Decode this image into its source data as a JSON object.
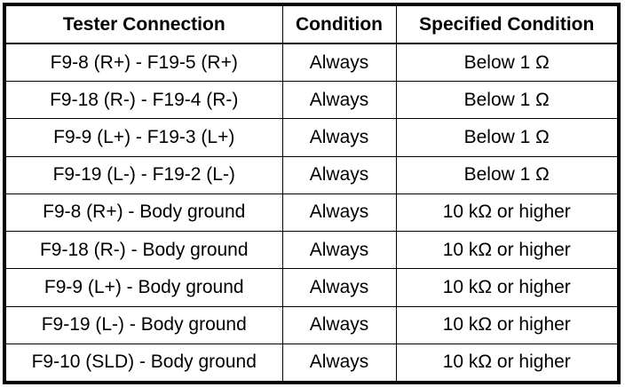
{
  "table": {
    "headers": [
      "Tester Connection",
      "Condition",
      "Specified Condition"
    ],
    "rows": [
      [
        "F9-8 (R+) - F19-5 (R+)",
        "Always",
        "Below 1 Ω"
      ],
      [
        "F9-18 (R-) - F19-4 (R-)",
        "Always",
        "Below 1 Ω"
      ],
      [
        "F9-9 (L+) - F19-3 (L+)",
        "Always",
        "Below 1 Ω"
      ],
      [
        "F9-19 (L-) - F19-2 (L-)",
        "Always",
        "Below 1 Ω"
      ],
      [
        "F9-8 (R+) - Body ground",
        "Always",
        "10 kΩ or higher"
      ],
      [
        "F9-18 (R-) - Body ground",
        "Always",
        "10 kΩ or higher"
      ],
      [
        "F9-9 (L+) - Body ground",
        "Always",
        "10 kΩ or higher"
      ],
      [
        "F9-19 (L-) - Body ground",
        "Always",
        "10 kΩ or higher"
      ],
      [
        "F9-10 (SLD) - Body ground",
        "Always",
        "10 kΩ or higher"
      ]
    ]
  }
}
